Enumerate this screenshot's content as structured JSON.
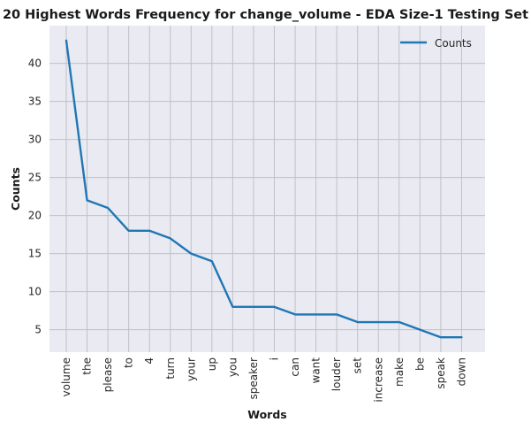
{
  "chart_data": {
    "type": "line",
    "title": "20 Highest Words Frequency for change_volume - EDA Size-1 Testing Set",
    "xlabel": "Words",
    "ylabel": "Counts",
    "categories": [
      "volume",
      "the",
      "please",
      "to",
      "4",
      "turn",
      "your",
      "up",
      "you",
      "speaker",
      "i",
      "can",
      "want",
      "louder",
      "set",
      "increase",
      "make",
      "be",
      "speak",
      "down"
    ],
    "series": [
      {
        "name": "Counts",
        "values": [
          43,
          22,
          21,
          18,
          18,
          17,
          15,
          14,
          8,
          8,
          8,
          7,
          7,
          7,
          6,
          6,
          6,
          5,
          4,
          4
        ],
        "color": "#1f77b4"
      }
    ],
    "y_ticks": [
      5,
      10,
      15,
      20,
      25,
      30,
      35,
      40
    ],
    "ylim": [
      2.05,
      44.95
    ],
    "grid": true,
    "legend": "top-right",
    "background_color": "#eaeaf2",
    "grid_color": "#c0c0c8"
  }
}
